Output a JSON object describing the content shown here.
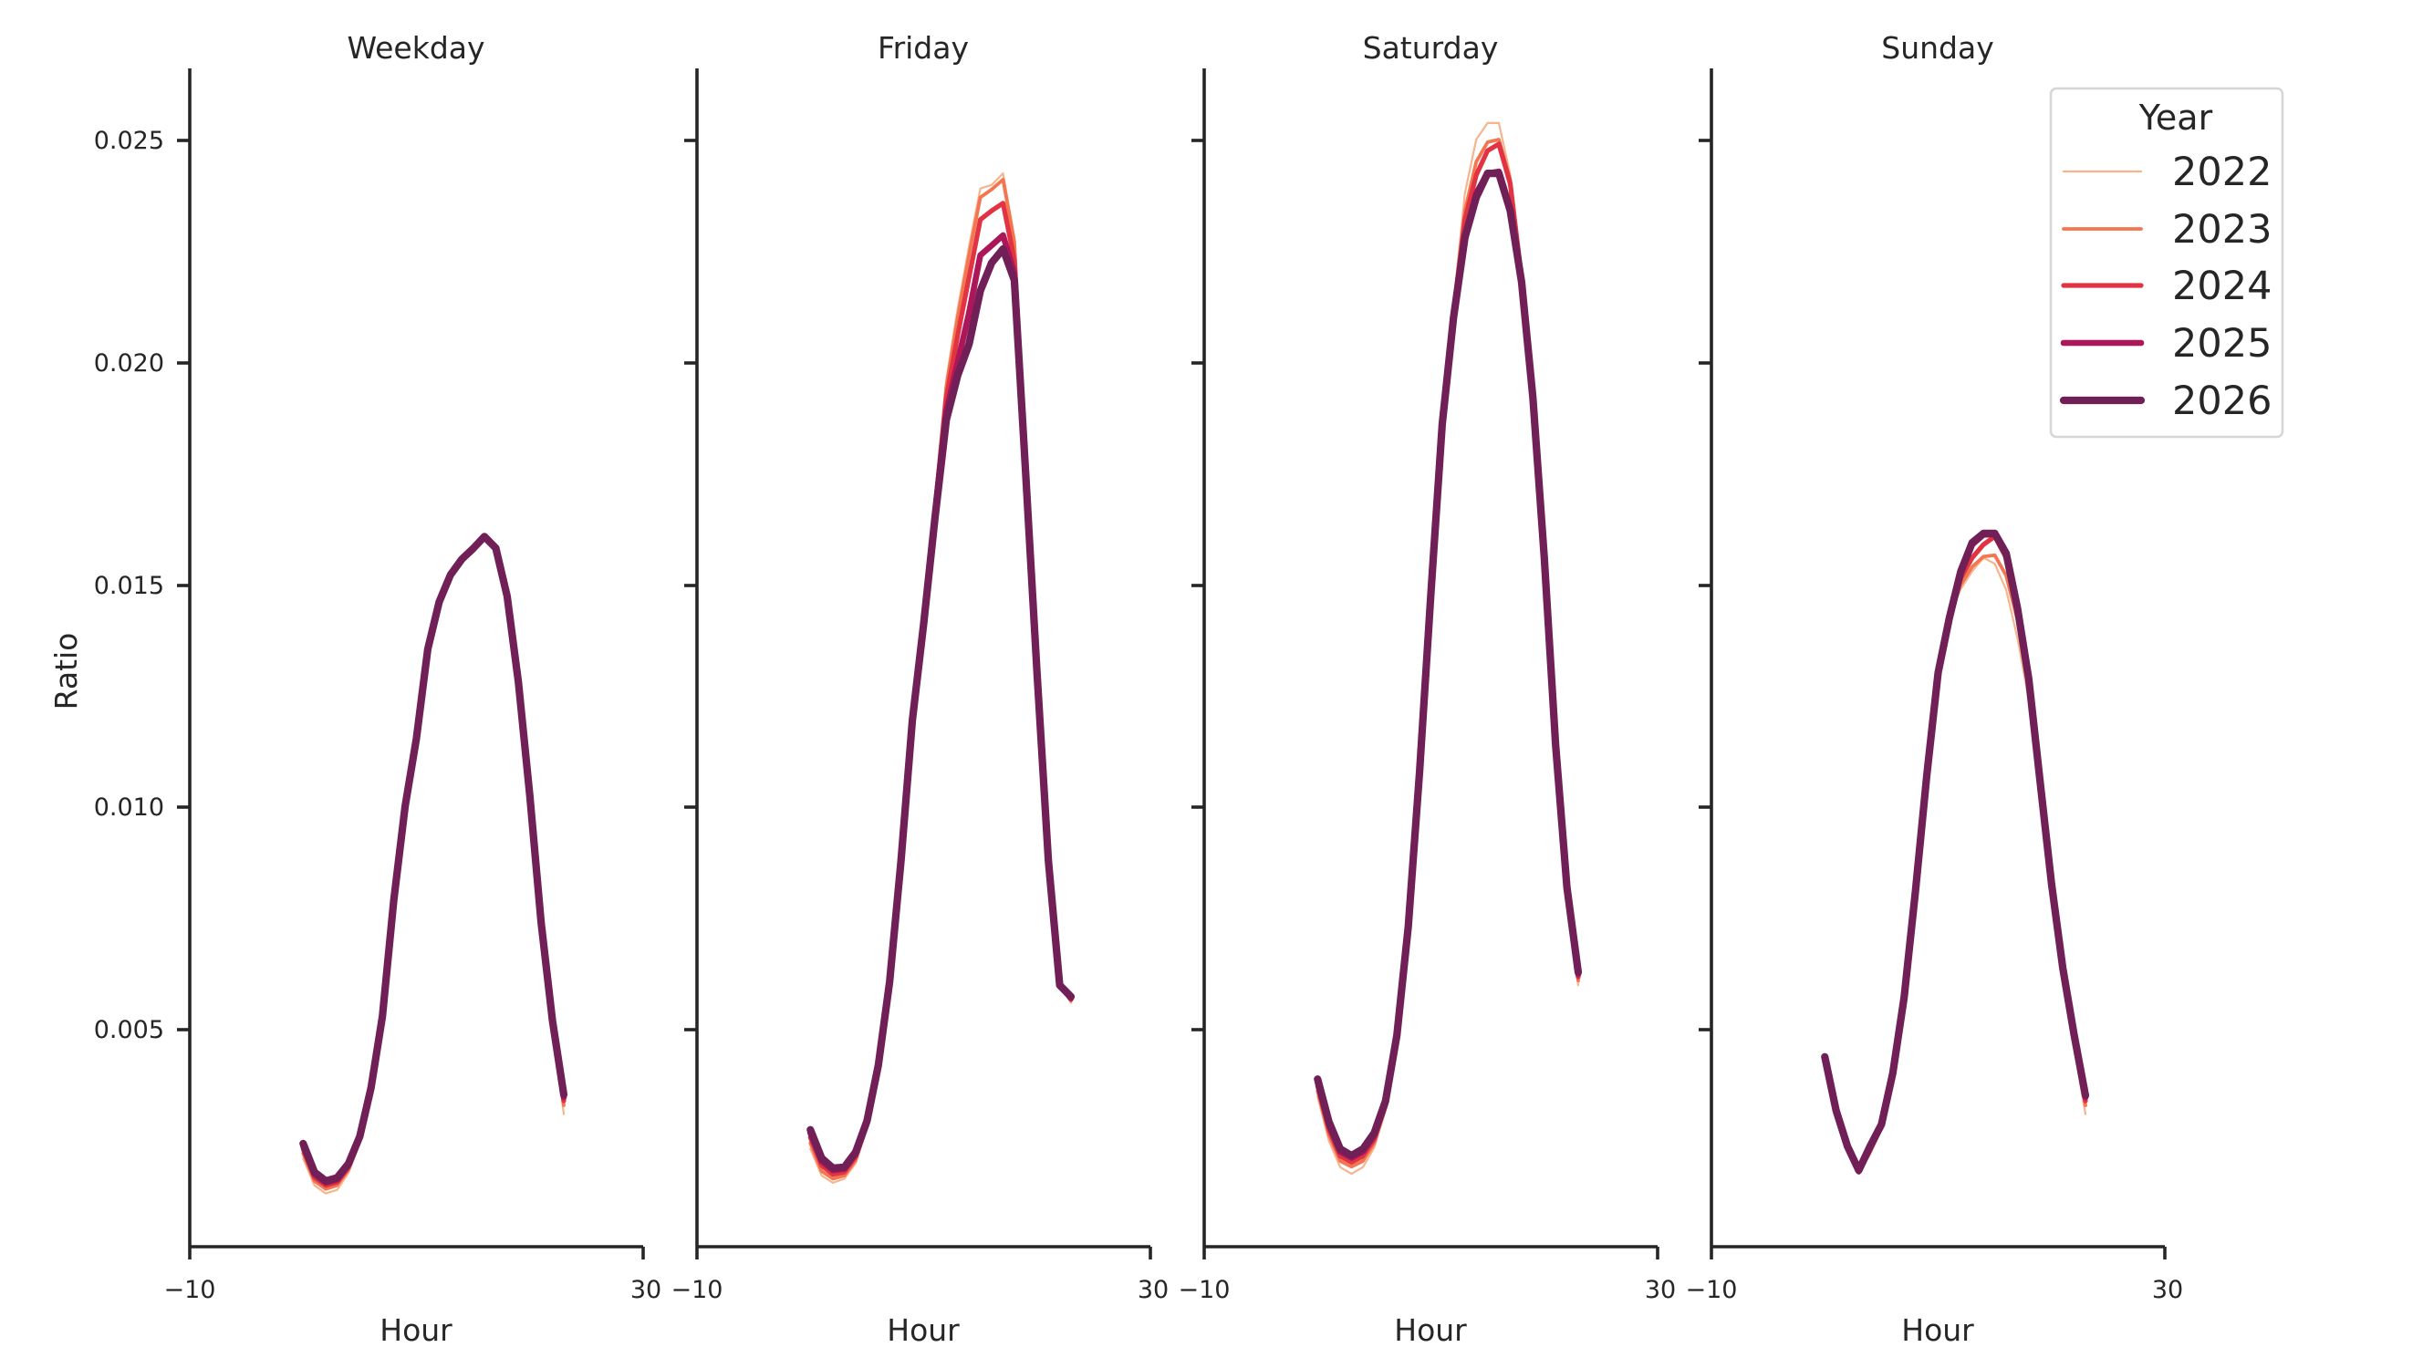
{
  "figure": {
    "ylabel": "Ratio",
    "xlabel": "Hour",
    "legend": {
      "title": "Year",
      "entries": [
        {
          "label": "2022",
          "color": "#f6b48f",
          "width": 2.2
        },
        {
          "label": "2023",
          "color": "#f37651",
          "width": 3.8
        },
        {
          "label": "2024",
          "color": "#e13342",
          "width": 5.2
        },
        {
          "label": "2025",
          "color": "#ad1759",
          "width": 6.6
        },
        {
          "label": "2026",
          "color": "#701f57",
          "width": 8.2
        }
      ]
    },
    "panels": [
      {
        "title": "Weekday",
        "xticks": [
          "−10",
          "30"
        ]
      },
      {
        "title": "Friday",
        "xticks": [
          "−10",
          "30"
        ]
      },
      {
        "title": "Saturday",
        "xticks": [
          "−10",
          "30"
        ]
      },
      {
        "title": "Sunday",
        "xticks": [
          "−10",
          "30"
        ]
      }
    ],
    "yticks": [
      "0.005",
      "0.010",
      "0.015",
      "0.020",
      "0.025"
    ]
  },
  "chart_data": {
    "type": "line",
    "title": "",
    "xlabel": "Hour",
    "ylabel": "Ratio",
    "xlim": [
      -10,
      30
    ],
    "ylim": [
      0.00014,
      0.0266
    ],
    "xticks": [
      -10,
      30
    ],
    "yticks": [
      0.005,
      0.01,
      0.015,
      0.02,
      0.025
    ],
    "grid": false,
    "legend_position": "upper right (inside Sunday panel)",
    "legend_title": "Year",
    "facets": [
      "Weekday",
      "Friday",
      "Saturday",
      "Sunday"
    ],
    "x": [
      0,
      1,
      2,
      3,
      4,
      5,
      6,
      7,
      8,
      9,
      10,
      11,
      12,
      13,
      14,
      15,
      16,
      17,
      18,
      19,
      20,
      21,
      22,
      23
    ],
    "panels": [
      {
        "title": "Weekday",
        "series": [
          {
            "name": "2022",
            "values": [
              0.0021,
              0.0015,
              0.00132,
              0.0014,
              0.00178,
              0.00245,
              0.00355,
              0.0052,
              0.0078,
              0.00995,
              0.0115,
              0.01352,
              0.01458,
              0.0152,
              0.01555,
              0.01578,
              0.01605,
              0.0158,
              0.0147,
              0.01275,
              0.01018,
              0.00735,
              0.00512,
              0.0031
            ]
          },
          {
            "name": "2023",
            "values": [
              0.00222,
              0.0016,
              0.00142,
              0.0015,
              0.00185,
              0.0025,
              0.0036,
              0.00524,
              0.00784,
              0.00998,
              0.01152,
              0.01353,
              0.01459,
              0.01521,
              0.01556,
              0.01579,
              0.01606,
              0.01581,
              0.01472,
              0.01277,
              0.0102,
              0.00737,
              0.00515,
              0.0033
            ]
          },
          {
            "name": "2024",
            "values": [
              0.00232,
              0.00168,
              0.0015,
              0.00157,
              0.00191,
              0.00255,
              0.00365,
              0.00527,
              0.00787,
              0.01,
              0.01153,
              0.01354,
              0.0146,
              0.01522,
              0.01557,
              0.0158,
              0.01608,
              0.01582,
              0.01473,
              0.01278,
              0.01022,
              0.00738,
              0.00518,
              0.0034
            ]
          },
          {
            "name": "2025",
            "values": [
              0.00239,
              0.00175,
              0.00156,
              0.00163,
              0.00196,
              0.00258,
              0.00368,
              0.00529,
              0.00789,
              0.01001,
              0.01154,
              0.01355,
              0.0146,
              0.01522,
              0.01557,
              0.0158,
              0.01608,
              0.01582,
              0.01474,
              0.01279,
              0.01024,
              0.00739,
              0.00519,
              0.00348
            ]
          },
          {
            "name": "2026",
            "values": [
              0.00244,
              0.0018,
              0.0016,
              0.00167,
              0.00199,
              0.0026,
              0.0037,
              0.0053,
              0.0079,
              0.01002,
              0.01155,
              0.01355,
              0.01461,
              0.01522,
              0.01557,
              0.01581,
              0.01608,
              0.01582,
              0.01474,
              0.0128,
              0.01025,
              0.0074,
              0.0052,
              0.00354
            ]
          }
        ]
      },
      {
        "title": "Friday",
        "series": [
          {
            "name": "2022",
            "values": [
              0.00232,
              0.00172,
              0.00156,
              0.00165,
              0.002,
              0.0028,
              0.0041,
              0.006,
              0.0087,
              0.012,
              0.0142,
              0.0168,
              0.0196,
              0.0212,
              0.0226,
              0.0239,
              0.02398,
              0.02424,
              0.0228,
              0.0178,
              0.013,
              0.0088,
              0.006,
              0.0056
            ]
          },
          {
            "name": "2023",
            "values": [
              0.00245,
              0.00182,
              0.00165,
              0.00172,
              0.00207,
              0.00283,
              0.00412,
              0.00602,
              0.00872,
              0.012,
              0.0142,
              0.0168,
              0.01945,
              0.021,
              0.0224,
              0.0237,
              0.02388,
              0.0241,
              0.0227,
              0.0178,
              0.013,
              0.0088,
              0.006,
              0.00565
            ]
          },
          {
            "name": "2024",
            "values": [
              0.00258,
              0.00195,
              0.00175,
              0.0018,
              0.00215,
              0.00287,
              0.00415,
              0.00604,
              0.00874,
              0.01198,
              0.01418,
              0.0167,
              0.0192,
              0.0206,
              0.0219,
              0.0232,
              0.0234,
              0.02357,
              0.0223,
              0.0177,
              0.013,
              0.0088,
              0.006,
              0.00568
            ]
          },
          {
            "name": "2025",
            "values": [
              0.00268,
              0.00204,
              0.00184,
              0.00187,
              0.00221,
              0.00291,
              0.00418,
              0.00606,
              0.00876,
              0.01196,
              0.01415,
              0.0166,
              0.0189,
              0.02,
              0.0211,
              0.0224,
              0.02262,
              0.02285,
              0.022,
              0.0176,
              0.013,
              0.0088,
              0.006,
              0.00571
            ]
          },
          {
            "name": "2026",
            "values": [
              0.00275,
              0.00211,
              0.00189,
              0.00191,
              0.00225,
              0.00295,
              0.0042,
              0.00608,
              0.00878,
              0.01195,
              0.01412,
              0.0165,
              0.0187,
              0.0197,
              0.0204,
              0.0216,
              0.02223,
              0.02254,
              0.02184,
              0.0175,
              0.013,
              0.0088,
              0.006,
              0.00574
            ]
          }
        ]
      },
      {
        "title": "Saturday",
        "series": [
          {
            "name": "2022",
            "values": [
              0.0035,
              0.0025,
              0.00191,
              0.00176,
              0.00191,
              0.00235,
              0.0032,
              0.0047,
              0.0072,
              0.0107,
              0.0148,
              0.0186,
              0.0213,
              0.0238,
              0.025,
              0.02537,
              0.02537,
              0.0242,
              0.022,
              0.0192,
              0.0156,
              0.0114,
              0.0082,
              0.006
            ]
          },
          {
            "name": "2023",
            "values": [
              0.00362,
              0.00264,
              0.00205,
              0.00192,
              0.00205,
              0.00245,
              0.00325,
              0.00475,
              0.00724,
              0.01073,
              0.0148,
              0.0186,
              0.0212,
              0.0234,
              0.0245,
              0.02494,
              0.025,
              0.0241,
              0.022,
              0.0192,
              0.0156,
              0.0114,
              0.0082,
              0.0061
            ]
          },
          {
            "name": "2024",
            "values": [
              0.00374,
              0.00276,
              0.00216,
              0.00202,
              0.00216,
              0.00254,
              0.0033,
              0.0048,
              0.00727,
              0.01076,
              0.0148,
              0.0186,
              0.0211,
              0.0232,
              0.0242,
              0.02475,
              0.0249,
              0.024,
              0.0219,
              0.0192,
              0.0156,
              0.0114,
              0.0082,
              0.00618
            ]
          },
          {
            "name": "2025",
            "values": [
              0.00383,
              0.00286,
              0.00226,
              0.00212,
              0.00226,
              0.00262,
              0.00335,
              0.00484,
              0.0073,
              0.01078,
              0.0148,
              0.0186,
              0.021,
              0.0228,
              0.0238,
              0.02424,
              0.02428,
              0.0234,
              0.0218,
              0.0192,
              0.0156,
              0.0114,
              0.0082,
              0.00624
            ]
          },
          {
            "name": "2026",
            "values": [
              0.00389,
              0.00293,
              0.00232,
              0.00217,
              0.00232,
              0.00268,
              0.0034,
              0.00487,
              0.00732,
              0.0108,
              0.0148,
              0.0186,
              0.021,
              0.0228,
              0.0237,
              0.02424,
              0.02424,
              0.0234,
              0.0218,
              0.0192,
              0.0156,
              0.0114,
              0.0082,
              0.00629
            ]
          }
        ]
      },
      {
        "title": "Sunday",
        "series": [
          {
            "name": "2022",
            "values": [
              0.0043,
              0.0031,
              0.00235,
              0.00176,
              0.0022,
              0.00275,
              0.0039,
              0.0056,
              0.008,
              0.0106,
              0.0129,
              0.0143,
              0.0149,
              0.0153,
              0.0156,
              0.01547,
              0.01488,
              0.0138,
              0.0124,
              0.0102,
              0.008,
              0.0061,
              0.0046,
              0.0031
            ]
          },
          {
            "name": "2023",
            "values": [
              0.00432,
              0.00312,
              0.00236,
              0.00178,
              0.00225,
              0.0028,
              0.00395,
              0.00565,
              0.00805,
              0.01065,
              0.01295,
              0.0143,
              0.015,
              0.0154,
              0.01563,
              0.01566,
              0.0152,
              0.0142,
              0.0127,
              0.0104,
              0.0081,
              0.0062,
              0.0047,
              0.0033
            ]
          },
          {
            "name": "2024",
            "values": [
              0.00435,
              0.00315,
              0.00237,
              0.0018,
              0.0023,
              0.00283,
              0.00398,
              0.00568,
              0.00808,
              0.01068,
              0.01298,
              0.01428,
              0.01515,
              0.0156,
              0.0159,
              0.01608,
              0.0156,
              0.0144,
              0.0128,
              0.0105,
              0.0082,
              0.0063,
              0.0048,
              0.0034
            ]
          },
          {
            "name": "2025",
            "values": [
              0.00437,
              0.00317,
              0.00238,
              0.00182,
              0.00234,
              0.00285,
              0.004,
              0.0057,
              0.0081,
              0.0107,
              0.013,
              0.01427,
              0.01525,
              0.0159,
              0.01612,
              0.01613,
              0.01568,
              0.01445,
              0.01285,
              0.01055,
              0.00825,
              0.00635,
              0.00485,
              0.00348
            ]
          },
          {
            "name": "2026",
            "values": [
              0.00439,
              0.00318,
              0.00238,
              0.00184,
              0.00238,
              0.00287,
              0.00402,
              0.00572,
              0.00812,
              0.01072,
              0.01302,
              0.01426,
              0.01529,
              0.01594,
              0.01615,
              0.01615,
              0.0157,
              0.01447,
              0.01287,
              0.01057,
              0.00828,
              0.00638,
              0.00488,
              0.00352
            ]
          }
        ]
      }
    ]
  }
}
